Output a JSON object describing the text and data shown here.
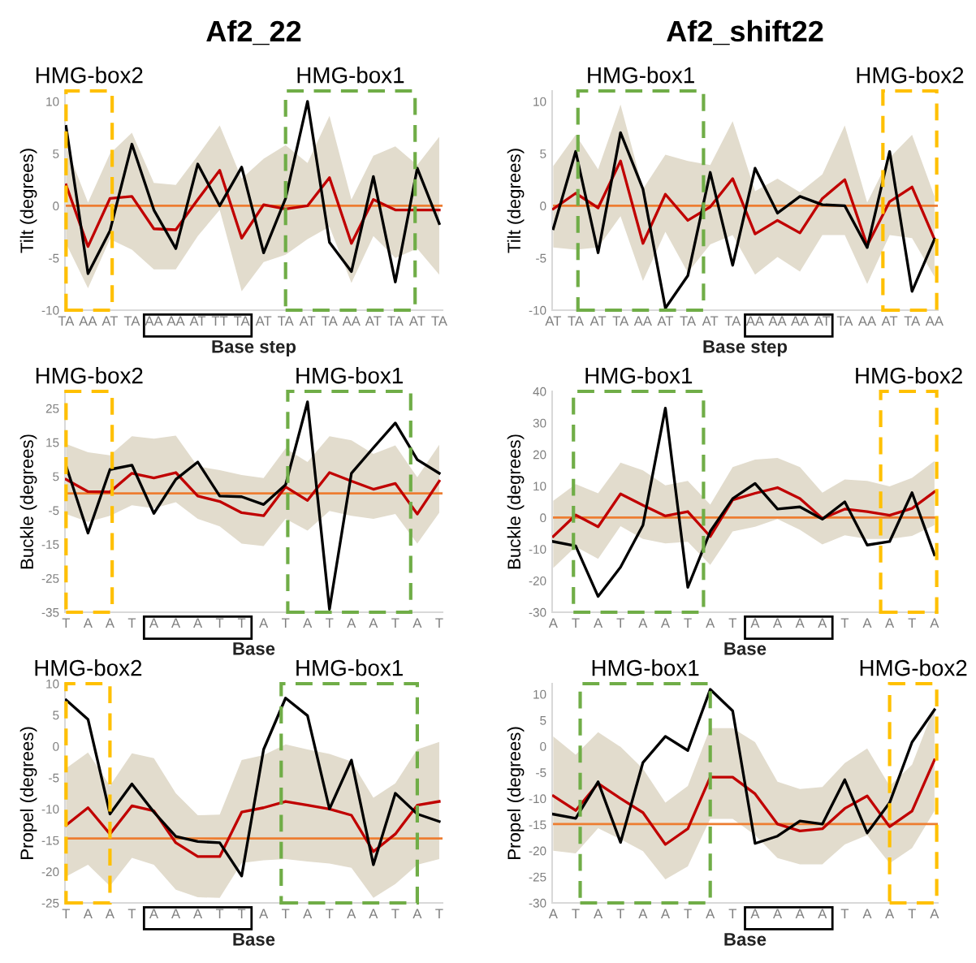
{
  "chart_data": [
    {
      "type": "line",
      "title": "Af2_22",
      "xlabel": "Base step",
      "ylabel": "Tilt (degrees)",
      "grid": false,
      "categories": [
        "TA",
        "AA",
        "AT",
        "TA",
        "AA",
        "AA",
        "AT",
        "TT",
        "TA",
        "AT",
        "TA",
        "AT",
        "TA",
        "AA",
        "AT",
        "TA",
        "AT",
        "TA"
      ],
      "ylim": [
        -10,
        11
      ],
      "yticks": [
        -10,
        -5,
        0,
        5,
        10
      ],
      "series": [
        {
          "color": "#c00000",
          "values": [
            2.0,
            -3.9,
            0.7,
            0.9,
            -2.2,
            -2.3,
            0.6,
            3.4,
            -3.1,
            0.1,
            -0.3,
            0,
            2.7,
            -3.6,
            0.6,
            -0.4,
            -0.4,
            -0.4
          ],
          "lower": [
            -3.6,
            -7.9,
            -3.2,
            -4.2,
            -6.1,
            -6.1,
            -2.9,
            -0.4,
            -8.2,
            -5.4,
            -4.7,
            -3.2,
            -2.0,
            -7.4,
            -2.9,
            -5.0,
            -4.1,
            -6.6
          ],
          "upper": [
            5.7,
            0.3,
            5.0,
            7.0,
            2.2,
            2.0,
            4.8,
            7.7,
            2.6,
            4.5,
            5.8,
            4.1,
            8.6,
            0.6,
            4.8,
            5.7,
            3.9,
            6.6
          ]
        },
        {
          "color": "#000000",
          "values": [
            7.6,
            -6.5,
            -2.4,
            5.9,
            -0.4,
            -4.1,
            4.0,
            0,
            3.7,
            -4.5,
            0.7,
            10,
            -3.5,
            -6.3,
            2.8,
            -7.3,
            3.6,
            -1.7
          ]
        }
      ],
      "ref_lines": [
        {
          "axis": "y",
          "value": 0,
          "color": "#ed7d31"
        }
      ],
      "annotations": [
        "HMG-box2",
        "HMG-box1"
      ]
    },
    {
      "type": "line",
      "title": "Af2_shift22",
      "xlabel": "Base step",
      "ylabel": "Tilt (degrees)",
      "grid": false,
      "categories": [
        "AT",
        "TA",
        "AT",
        "TA",
        "AA",
        "AT",
        "TA",
        "AT",
        "TA",
        "AA",
        "AA",
        "AA",
        "AT",
        "TA",
        "AA",
        "AT",
        "TA",
        "AA"
      ],
      "ylim": [
        -10,
        11
      ],
      "yticks": [
        -10,
        -5,
        0,
        5,
        10
      ],
      "series": [
        {
          "color": "#c00000",
          "values": [
            -0.3,
            1.2,
            -0.2,
            4.3,
            -3.6,
            1.1,
            -1.4,
            -0.1,
            2.6,
            -2.7,
            -1.4,
            -2.6,
            0.7,
            2.5,
            -3.8,
            0.4,
            1.8,
            -3.2
          ],
          "lower": [
            -4.0,
            -4.2,
            -4.0,
            -1.0,
            -7.2,
            -2.5,
            -6.4,
            -3.7,
            -2.8,
            -6.6,
            -4.9,
            -6.3,
            -2.8,
            -2.8,
            -7.5,
            -2.8,
            -3.1,
            -6.8
          ],
          "upper": [
            3.8,
            6.8,
            3.5,
            9.7,
            1.6,
            4.9,
            4.3,
            3.9,
            8.1,
            1.4,
            2.6,
            1.3,
            3.0,
            7.7,
            0.3,
            4.6,
            6.8,
            0.9
          ]
        },
        {
          "color": "#000000",
          "values": [
            -2.2,
            5.2,
            -4.5,
            7.0,
            1.6,
            -9.8,
            -6.7,
            3.2,
            -5.7,
            3.6,
            -0.7,
            0.9,
            0.1,
            0,
            -4.0,
            5.2,
            -8.2,
            -3.2
          ]
        }
      ],
      "ref_lines": [
        {
          "axis": "y",
          "value": 0,
          "color": "#ed7d31"
        }
      ],
      "annotations": [
        "HMG-box1",
        "HMG-box2"
      ]
    },
    {
      "type": "line",
      "xlabel": "Base",
      "ylabel": "Buckle (degrees)",
      "grid": false,
      "categories": [
        "T",
        "A",
        "A",
        "T",
        "A",
        "A",
        "A",
        "T",
        "T",
        "A",
        "T",
        "A",
        "T",
        "A",
        "A",
        "T",
        "A",
        "T"
      ],
      "ylim": [
        -35,
        30
      ],
      "yticks": [
        -35,
        -25,
        -15,
        -5,
        5,
        15,
        25
      ],
      "series": [
        {
          "color": "#c00000",
          "values": [
            4.1,
            0.5,
            0.4,
            5.9,
            4.5,
            6.1,
            -0.8,
            -2.4,
            -5.7,
            -6.6,
            1.9,
            -2.1,
            6.1,
            3.6,
            1.2,
            2.9,
            -6.1,
            3.6
          ],
          "lower": [
            -6.1,
            -8.4,
            -6.6,
            -3.5,
            -4.4,
            -2.6,
            -7.5,
            -9.7,
            -14.8,
            -15.5,
            -7.5,
            -11.0,
            -5.2,
            -6.6,
            -7.5,
            -6.1,
            -14.8,
            -5.7
          ],
          "upper": [
            14.5,
            12.1,
            11.2,
            16.8,
            16.1,
            17.0,
            7.9,
            6.8,
            5.4,
            4.5,
            13.2,
            9.2,
            16.8,
            15.6,
            11.6,
            14.1,
            4.7,
            14.3
          ]
        },
        {
          "color": "#000000",
          "values": [
            8.1,
            -11.7,
            7.0,
            8.3,
            -5.9,
            4.1,
            9.2,
            -0.8,
            -1.0,
            -3.3,
            2.5,
            26.9,
            -34.1,
            5.9,
            13.4,
            20.7,
            9.9,
            5.9
          ]
        }
      ],
      "ref_lines": [
        {
          "axis": "y",
          "value": 0,
          "color": "#ed7d31"
        }
      ],
      "annotations": [
        "HMG-box2",
        "HMG-box1"
      ]
    },
    {
      "type": "line",
      "xlabel": "Base",
      "ylabel": "Buckle (degrees)",
      "grid": false,
      "categories": [
        "A",
        "T",
        "A",
        "T",
        "A",
        "A",
        "T",
        "A",
        "T",
        "A",
        "A",
        "A",
        "A",
        "T",
        "A",
        "A",
        "T",
        "A"
      ],
      "ylim": [
        -30,
        40
      ],
      "yticks": [
        -30,
        -20,
        -10,
        0,
        10,
        20,
        30,
        40
      ],
      "series": [
        {
          "color": "#c00000",
          "values": [
            -6.0,
            0.8,
            -2.9,
            7.5,
            3.9,
            0.5,
            1.9,
            -6.0,
            5.6,
            7.7,
            9.5,
            6.0,
            -0.3,
            2.7,
            1.9,
            0.7,
            2.9,
            8.2
          ],
          "lower": [
            -16.0,
            -9.2,
            -13.1,
            -2.7,
            -6.8,
            -8.2,
            -7.7,
            -15.0,
            -4.4,
            -2.9,
            -0.5,
            -3.9,
            -8.5,
            -5.6,
            -6.8,
            -6.8,
            -5.8,
            -2.4
          ],
          "upper": [
            5.3,
            10.6,
            7.7,
            17.4,
            15.0,
            10.2,
            11.6,
            4.1,
            16.0,
            18.4,
            18.9,
            16.0,
            7.9,
            12.1,
            11.6,
            9.9,
            12.6,
            17.9
          ]
        },
        {
          "color": "#000000",
          "values": [
            -7.6,
            -9.0,
            -25.0,
            -15.7,
            -2.4,
            34.7,
            -22.1,
            -4.4,
            6.0,
            10.8,
            2.7,
            3.4,
            -0.5,
            5.0,
            -8.7,
            -7.6,
            7.9,
            -11.8
          ]
        }
      ],
      "ref_lines": [
        {
          "axis": "y",
          "value": 0,
          "color": "#ed7d31"
        }
      ],
      "annotations": [
        "HMG-box1",
        "HMG-box2"
      ]
    },
    {
      "type": "line",
      "xlabel": "Base",
      "ylabel": "Propel (degrees)",
      "grid": false,
      "categories": [
        "T",
        "A",
        "A",
        "T",
        "A",
        "A",
        "A",
        "T",
        "T",
        "A",
        "T",
        "A",
        "T",
        "A",
        "A",
        "T",
        "A",
        "T"
      ],
      "ylim": [
        -25,
        10
      ],
      "yticks": [
        -25,
        -20,
        -15,
        -10,
        -5,
        0,
        5,
        10
      ],
      "series": [
        {
          "color": "#c00000",
          "values": [
            -12.6,
            -9.8,
            -14.0,
            -9.5,
            -10.3,
            -15.4,
            -17.6,
            -17.6,
            -10.5,
            -9.8,
            -8.8,
            -9.4,
            -10.0,
            -11.0,
            -16.8,
            -14.0,
            -9.4,
            -8.8
          ],
          "lower": [
            -20.8,
            -18.9,
            -22.3,
            -17.8,
            -18.9,
            -22.9,
            -24.1,
            -24.2,
            -18.6,
            -18.2,
            -18.0,
            -18.4,
            -18.7,
            -19.4,
            -24.2,
            -22.0,
            -18.9,
            -18.0
          ],
          "upper": [
            -3.5,
            -1.0,
            -6.3,
            -1.1,
            -1.9,
            -7.5,
            -11.0,
            -10.9,
            -2.2,
            -1.4,
            0.3,
            -0.5,
            -1.2,
            -2.4,
            -8.2,
            -5.9,
            -0.5,
            0.7
          ]
        },
        {
          "color": "#000000",
          "values": [
            7.4,
            4.3,
            -10.8,
            -6.0,
            -10.5,
            -14.4,
            -15.2,
            -15.4,
            -20.7,
            -0.5,
            7.7,
            4.9,
            -10.0,
            -2.2,
            -18.9,
            -7.5,
            -10.8,
            -12.0
          ]
        }
      ],
      "ref_lines": [
        {
          "axis": "y",
          "value": -14.7,
          "color": "#ed7d31"
        }
      ],
      "annotations": [
        "HMG-box2",
        "HMG-box1"
      ]
    },
    {
      "type": "line",
      "xlabel": "Base",
      "ylabel": "Propel (degrees)",
      "grid": false,
      "categories": [
        "A",
        "T",
        "A",
        "T",
        "A",
        "A",
        "T",
        "A",
        "T",
        "A",
        "A",
        "A",
        "A",
        "T",
        "A",
        "A",
        "T",
        "A"
      ],
      "ylim": [
        -30,
        12
      ],
      "yticks": [
        -30,
        -25,
        -20,
        -15,
        -10,
        -5,
        0,
        5,
        10
      ],
      "series": [
        {
          "color": "#c00000",
          "values": [
            -9.5,
            -12.3,
            -7.1,
            -10.0,
            -12.7,
            -18.8,
            -15.8,
            -5.9,
            -5.9,
            -9.1,
            -14.9,
            -16.2,
            -15.8,
            -11.9,
            -9.5,
            -15.4,
            -12.4,
            -2.6
          ],
          "lower": [
            -20.0,
            -20.5,
            -15.7,
            -17.8,
            -20.1,
            -25.5,
            -23.0,
            -13.9,
            -13.9,
            -17.0,
            -21.4,
            -22.6,
            -22.6,
            -18.8,
            -17.0,
            -22.4,
            -19.5,
            -12.4
          ],
          "upper": [
            1.9,
            -1.6,
            2.7,
            -0.1,
            -4.3,
            -10.8,
            -7.6,
            3.5,
            3.5,
            0.8,
            -6.8,
            -8.2,
            -7.8,
            -3.2,
            -0.4,
            -7.6,
            -3.5,
            7.6
          ]
        },
        {
          "color": "#000000",
          "values": [
            -13.0,
            -13.8,
            -6.8,
            -18.4,
            -3.1,
            1.9,
            -0.8,
            10.9,
            6.8,
            -18.6,
            -17.2,
            -14.3,
            -14.9,
            -6.4,
            -16.6,
            -10.8,
            0.8,
            7.0
          ]
        }
      ],
      "ref_lines": [
        {
          "axis": "y",
          "value": -14.9,
          "color": "#ed7d31"
        }
      ],
      "annotations": [
        "HMG-box1",
        "HMG-box2"
      ]
    }
  ]
}
